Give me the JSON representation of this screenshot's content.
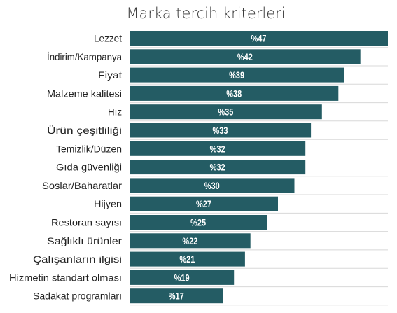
{
  "chart_data": {
    "type": "bar",
    "orientation": "horizontal",
    "title": "Marka tercih kriterleri",
    "categories": [
      "Lezzet",
      "İndirim/Kampanya",
      "Fiyat",
      "Malzeme kalitesi",
      "Hız",
      "Ürün çeşitliliği",
      "Temizlik/Düzen",
      "Gıda güvenliği",
      "Soslar/Baharatlar",
      "Hijyen",
      "Restoran sayısı",
      "Sağlıklı ürünler",
      "Çalışanların ilgisi",
      "Hizmetin standart olması",
      "Sadakat programları"
    ],
    "values": [
      47,
      42,
      39,
      38,
      35,
      33,
      32,
      32,
      30,
      27,
      25,
      22,
      21,
      19,
      17
    ],
    "value_labels": [
      "%47",
      "%42",
      "%39",
      "%38",
      "%35",
      "%33",
      "%32",
      "%32",
      "%30",
      "%27",
      "%25",
      "%22",
      "%21",
      "%19",
      "%17"
    ],
    "xlim": [
      0,
      47
    ],
    "grid": "horizontal separators",
    "colors": {
      "bar": "#245c64",
      "separator": "#d8d8d8",
      "value_text": "#ffffff"
    }
  }
}
